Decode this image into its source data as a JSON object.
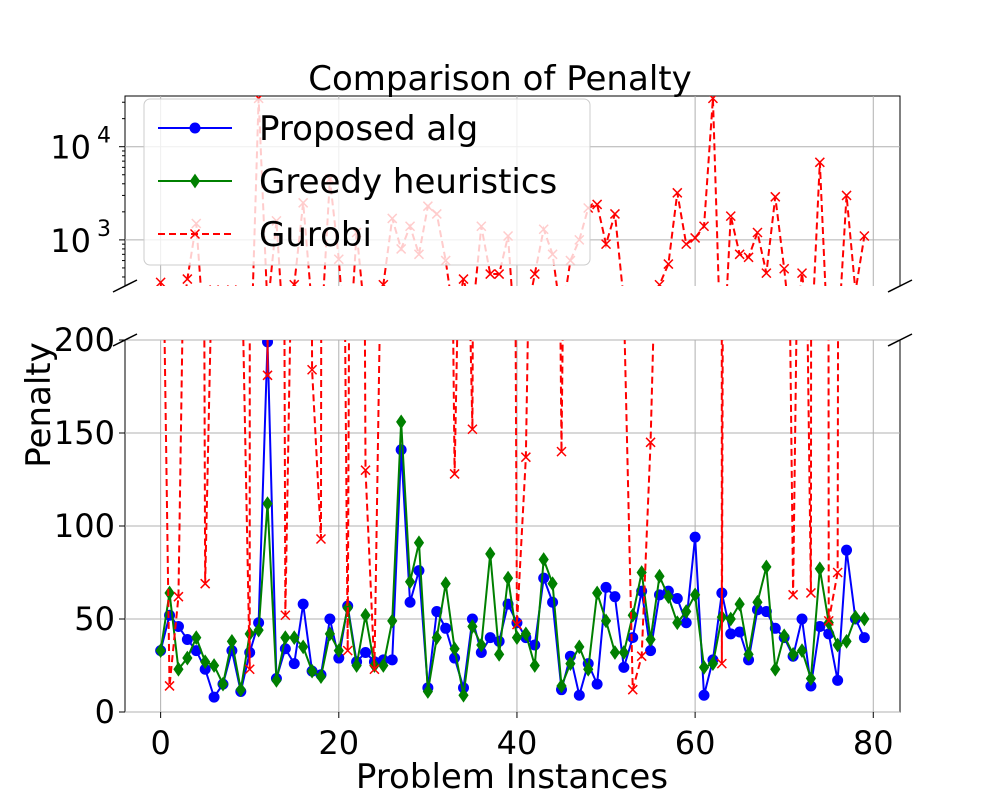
{
  "chart_data": {
    "type": "line",
    "title": "Comparison of Penalty",
    "xlabel": "Problem Instances",
    "ylabel": "Penalty",
    "xlim": [
      -4,
      83
    ],
    "broken_axis": {
      "top": {
        "scale": "log",
        "ylim": [
          320,
          35000
        ],
        "yticks": [
          {
            "value": 1000,
            "label": "10^3"
          },
          {
            "value": 10000,
            "label": "10^4"
          }
        ]
      },
      "bottom": {
        "scale": "linear",
        "ylim": [
          0,
          200
        ],
        "yticks": [
          0,
          50,
          100,
          150,
          200
        ]
      }
    },
    "xticks": [
      0,
      20,
      40,
      60,
      80
    ],
    "grid": true,
    "legend_position": "top-left",
    "series": [
      {
        "name": "Proposed alg",
        "color": "#0000ff",
        "marker": "circle",
        "linestyle": "solid",
        "values": [
          33,
          52,
          46,
          39,
          33,
          23,
          8,
          15,
          33,
          11,
          32,
          48,
          199,
          18,
          34,
          26,
          58,
          22,
          20,
          50,
          29,
          57,
          27,
          32,
          27,
          28,
          28,
          141,
          59,
          76,
          13,
          54,
          45,
          29,
          13,
          50,
          32,
          40,
          38,
          58,
          48,
          40,
          36,
          72,
          59,
          12,
          30,
          9,
          26,
          15,
          67,
          62,
          24,
          40,
          65,
          33,
          63,
          65,
          61,
          48,
          94,
          9,
          28,
          64,
          42,
          43,
          28,
          55,
          54,
          45,
          40,
          30,
          50,
          14,
          46,
          42,
          17,
          87,
          50,
          40
        ]
      },
      {
        "name": "Greedy heuristics",
        "color": "#008000",
        "marker": "diamond",
        "linestyle": "solid",
        "values": [
          33,
          64,
          23,
          29,
          40,
          27,
          25,
          15,
          38,
          12,
          42,
          44,
          112,
          17,
          40,
          40,
          35,
          22,
          19,
          42,
          33,
          56,
          25,
          52,
          25,
          25,
          49,
          156,
          70,
          91,
          11,
          40,
          69,
          34,
          9,
          46,
          36,
          85,
          31,
          72,
          40,
          42,
          25,
          82,
          69,
          14,
          26,
          35,
          23,
          64,
          49,
          32,
          32,
          52,
          75,
          39,
          73,
          62,
          48,
          54,
          63,
          24,
          26,
          51,
          50,
          58,
          31,
          59,
          78,
          23,
          41,
          31,
          33,
          18,
          77,
          48,
          36,
          38,
          51,
          50
        ]
      },
      {
        "name": "Gurobi",
        "color": "#ff0000",
        "marker": "x",
        "linestyle": "dashed",
        "values": [
          350,
          14,
          62,
          380,
          1500,
          69,
          290,
          260,
          290,
          270,
          23,
          33000,
          181,
          1600,
          52,
          330,
          2500,
          184,
          93,
          4500,
          620,
          33,
          1200,
          130,
          23,
          330,
          1700,
          800,
          1400,
          700,
          2300,
          1900,
          600,
          128,
          380,
          152,
          1400,
          430,
          430,
          1100,
          47,
          137,
          430,
          1300,
          700,
          140,
          600,
          1000,
          2200,
          2400,
          900,
          1900,
          220,
          12,
          30,
          145,
          330,
          550,
          3200,
          900,
          1050,
          1400,
          33000,
          26,
          1800,
          700,
          650,
          1200,
          440,
          2900,
          490,
          63,
          440,
          64,
          6800,
          49,
          75,
          3000,
          280,
          1100
        ]
      }
    ]
  }
}
